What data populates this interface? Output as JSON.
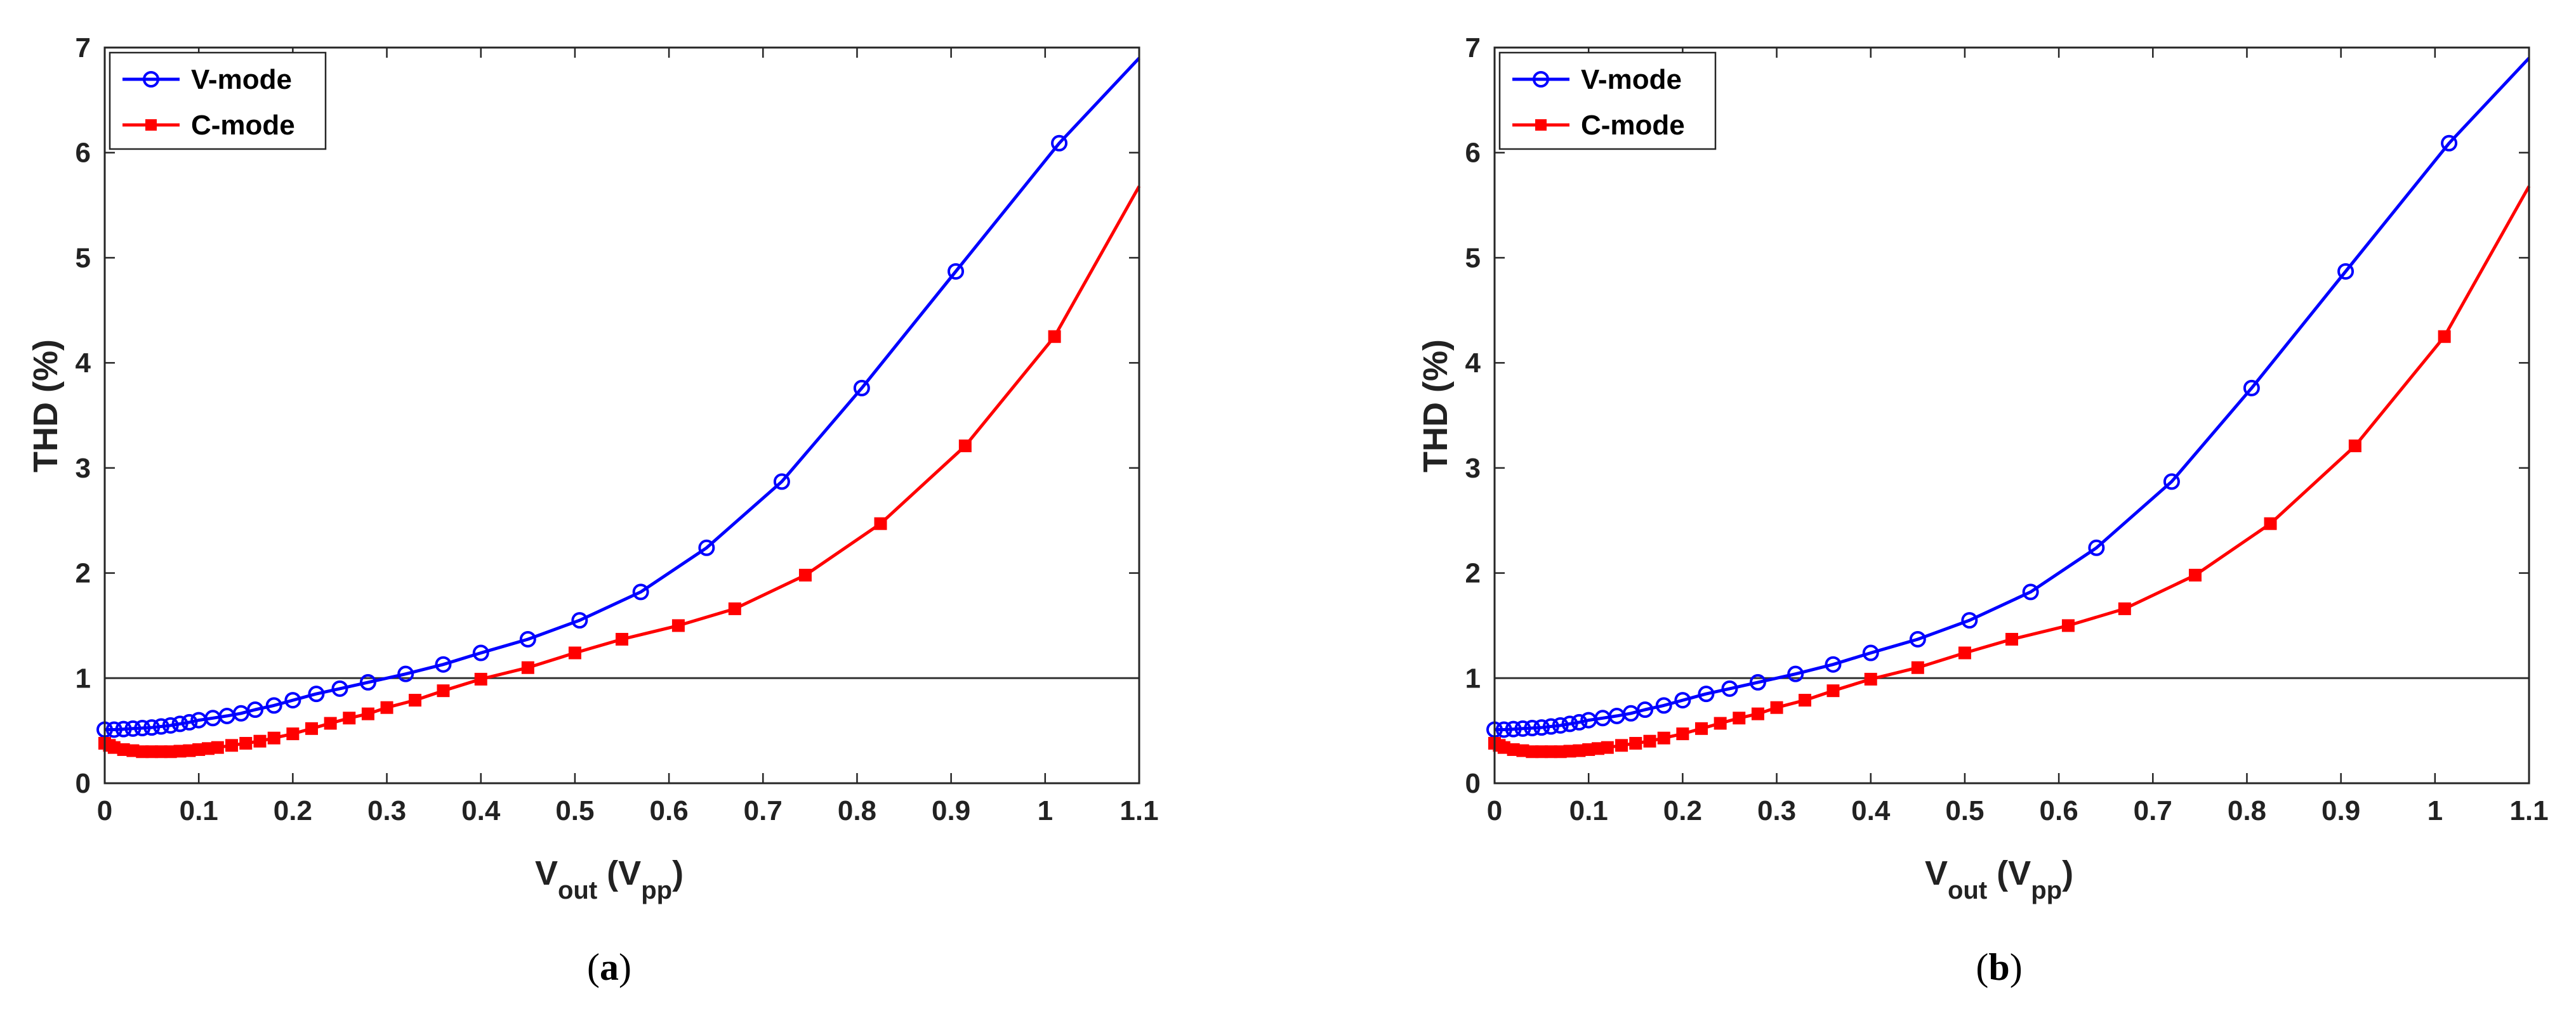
{
  "chart_data": [
    {
      "type": "line",
      "panel": "a",
      "caption": {
        "open": "(",
        "letter": "a",
        "close": ")"
      },
      "xlabel": {
        "main": "V",
        "sub": "out",
        "mid": " (V",
        "sub2": "pp",
        "end": ")"
      },
      "ylabel": "THD (%)",
      "xlim": [
        0,
        1.1
      ],
      "ylim": [
        0,
        7
      ],
      "xticks": [
        "0",
        "0.1",
        "0.2",
        "0.3",
        "0.4",
        "0.5",
        "0.6",
        "0.7",
        "0.8",
        "0.9",
        "1",
        "1.1"
      ],
      "yticks": [
        "0",
        "1",
        "2",
        "3",
        "4",
        "5",
        "6",
        "7"
      ],
      "reference_line": 1,
      "legend_position": "top-left",
      "series": [
        {
          "name": "V-mode",
          "color": "#0000ff",
          "marker": "circle",
          "x": [
            0,
            0.01,
            0.02,
            0.03,
            0.04,
            0.05,
            0.06,
            0.07,
            0.08,
            0.09,
            0.1,
            0.115,
            0.13,
            0.145,
            0.16,
            0.18,
            0.2,
            0.225,
            0.25,
            0.28,
            0.32,
            0.36,
            0.4,
            0.45,
            0.505,
            0.57,
            0.64,
            0.72,
            0.805,
            0.905,
            1.015
          ],
          "y": [
            0.51,
            0.51,
            0.515,
            0.52,
            0.525,
            0.53,
            0.54,
            0.55,
            0.565,
            0.58,
            0.6,
            0.62,
            0.64,
            0.665,
            0.7,
            0.74,
            0.79,
            0.85,
            0.9,
            0.96,
            1.04,
            1.13,
            1.24,
            1.37,
            1.55,
            1.82,
            2.24,
            2.87,
            3.76,
            4.87,
            6.09
          ],
          "end": {
            "x": 1.1,
            "y": 6.9
          }
        },
        {
          "name": "C-mode",
          "color": "#ff0000",
          "marker": "square",
          "x": [
            0,
            0.005,
            0.01,
            0.02,
            0.03,
            0.04,
            0.05,
            0.06,
            0.07,
            0.08,
            0.09,
            0.1,
            0.11,
            0.12,
            0.135,
            0.15,
            0.165,
            0.18,
            0.2,
            0.22,
            0.24,
            0.26,
            0.28,
            0.3,
            0.33,
            0.36,
            0.4,
            0.45,
            0.5,
            0.55,
            0.61,
            0.67,
            0.745,
            0.825,
            0.915,
            1.01
          ],
          "y": [
            0.38,
            0.36,
            0.34,
            0.32,
            0.31,
            0.3,
            0.3,
            0.3,
            0.3,
            0.305,
            0.31,
            0.32,
            0.33,
            0.34,
            0.36,
            0.38,
            0.4,
            0.43,
            0.47,
            0.52,
            0.57,
            0.62,
            0.66,
            0.72,
            0.79,
            0.88,
            0.99,
            1.1,
            1.24,
            1.37,
            1.5,
            1.66,
            1.98,
            2.47,
            3.21,
            4.25
          ],
          "end": {
            "x": 1.1,
            "y": 5.68
          }
        }
      ]
    },
    {
      "type": "line",
      "panel": "b",
      "caption": {
        "open": "(",
        "letter": "b",
        "close": ")"
      },
      "xlabel": {
        "main": "V",
        "sub": "out",
        "mid": " (V",
        "sub2": "pp",
        "end": ")"
      },
      "ylabel": "THD (%)",
      "xlim": [
        0,
        1.1
      ],
      "ylim": [
        0,
        7
      ],
      "xticks": [
        "0",
        "0.1",
        "0.2",
        "0.3",
        "0.4",
        "0.5",
        "0.6",
        "0.7",
        "0.8",
        "0.9",
        "1",
        "1.1"
      ],
      "yticks": [
        "0",
        "1",
        "2",
        "3",
        "4",
        "5",
        "6",
        "7"
      ],
      "reference_line": 1,
      "legend_position": "top-left",
      "series": [
        {
          "name": "V-mode",
          "color": "#0000ff",
          "marker": "circle",
          "x": [
            0,
            0.01,
            0.02,
            0.03,
            0.04,
            0.05,
            0.06,
            0.07,
            0.08,
            0.09,
            0.1,
            0.115,
            0.13,
            0.145,
            0.16,
            0.18,
            0.2,
            0.225,
            0.25,
            0.28,
            0.32,
            0.36,
            0.4,
            0.45,
            0.505,
            0.57,
            0.64,
            0.72,
            0.805,
            0.905,
            1.015
          ],
          "y": [
            0.51,
            0.51,
            0.515,
            0.52,
            0.525,
            0.53,
            0.54,
            0.55,
            0.565,
            0.58,
            0.6,
            0.62,
            0.64,
            0.665,
            0.7,
            0.74,
            0.79,
            0.85,
            0.9,
            0.96,
            1.04,
            1.13,
            1.24,
            1.37,
            1.55,
            1.82,
            2.24,
            2.87,
            3.76,
            4.87,
            6.09
          ],
          "end": {
            "x": 1.1,
            "y": 6.9
          }
        },
        {
          "name": "C-mode",
          "color": "#ff0000",
          "marker": "square",
          "x": [
            0,
            0.005,
            0.01,
            0.02,
            0.03,
            0.04,
            0.05,
            0.06,
            0.07,
            0.08,
            0.09,
            0.1,
            0.11,
            0.12,
            0.135,
            0.15,
            0.165,
            0.18,
            0.2,
            0.22,
            0.24,
            0.26,
            0.28,
            0.3,
            0.33,
            0.36,
            0.4,
            0.45,
            0.5,
            0.55,
            0.61,
            0.67,
            0.745,
            0.825,
            0.915,
            1.01
          ],
          "y": [
            0.38,
            0.36,
            0.34,
            0.32,
            0.31,
            0.3,
            0.3,
            0.3,
            0.3,
            0.305,
            0.31,
            0.32,
            0.33,
            0.34,
            0.36,
            0.38,
            0.4,
            0.43,
            0.47,
            0.52,
            0.57,
            0.62,
            0.66,
            0.72,
            0.79,
            0.88,
            0.99,
            1.1,
            1.24,
            1.37,
            1.5,
            1.66,
            1.98,
            2.47,
            3.21,
            4.25
          ],
          "end": {
            "x": 1.1,
            "y": 5.68
          }
        }
      ]
    }
  ]
}
